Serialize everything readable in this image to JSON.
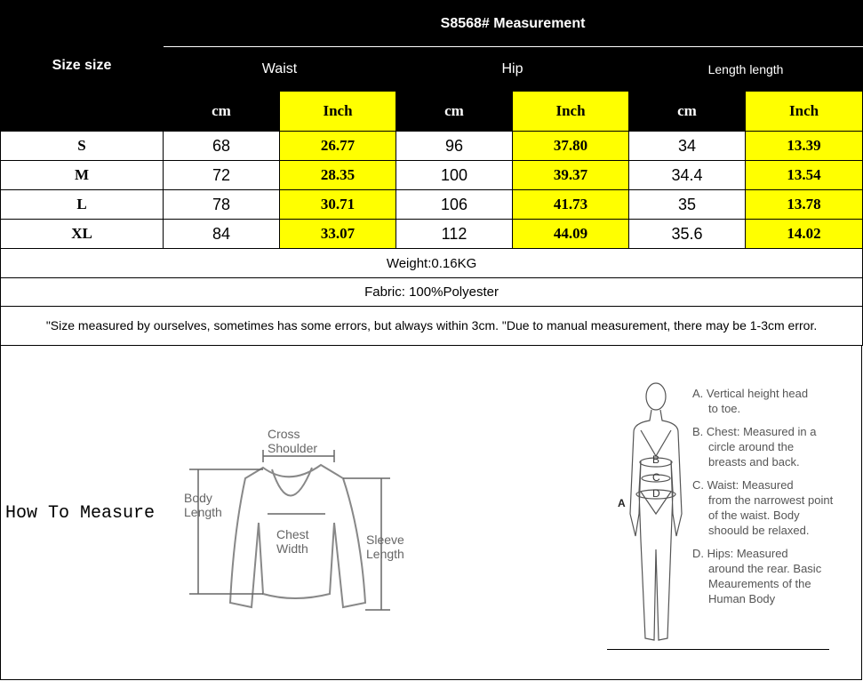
{
  "table": {
    "size_header": "Size size",
    "title": "S8568# Measurement",
    "groups": [
      "Waist",
      "Hip",
      "Length length"
    ],
    "units": [
      "cm",
      "Inch",
      "cm",
      "Inch",
      "cm",
      "Inch"
    ],
    "rows": [
      {
        "size": "S",
        "values": [
          "68",
          "26.77",
          "96",
          "37.80",
          "34",
          "13.39"
        ]
      },
      {
        "size": "M",
        "values": [
          "72",
          "28.35",
          "100",
          "39.37",
          "34.4",
          "13.54"
        ]
      },
      {
        "size": "L",
        "values": [
          "78",
          "30.71",
          "106",
          "41.73",
          "35",
          "13.78"
        ]
      },
      {
        "size": "XL",
        "values": [
          "84",
          "33.07",
          "112",
          "44.09",
          "35.6",
          "14.02"
        ]
      }
    ],
    "weight": "Weight:0.16KG",
    "fabric": "Fabric: 100%Polyester",
    "note": "\"Size measured by ourselves, sometimes has some errors, but always within 3cm. \"Due to manual measurement, there may be 1-3cm error."
  },
  "how_to": {
    "title": "How To Measure",
    "garment_labels": {
      "cross": "Cross",
      "shoulder": "Shoulder",
      "body": "Body",
      "length": "Length",
      "chest": "Chest",
      "width": "Width",
      "sleeve": "Sleeve",
      "sleeve_length": "Length"
    },
    "body_letters": [
      "A",
      "B",
      "C",
      "D"
    ],
    "body_notes": [
      {
        "head": "A. Vertical height head",
        "rest": "to toe."
      },
      {
        "head": "B. Chest: Measured in a",
        "rest": "circle around the breasts and back."
      },
      {
        "head": "C. Waist: Measured",
        "rest": "from the narrowest point of the waist. Body shoould be relaxed."
      },
      {
        "head": "D. Hips: Measured",
        "rest": "around the rear. Basic Meaurements of the Human Body"
      }
    ]
  },
  "colors": {
    "header_bg": "#000000",
    "highlight": "#ffff00"
  }
}
